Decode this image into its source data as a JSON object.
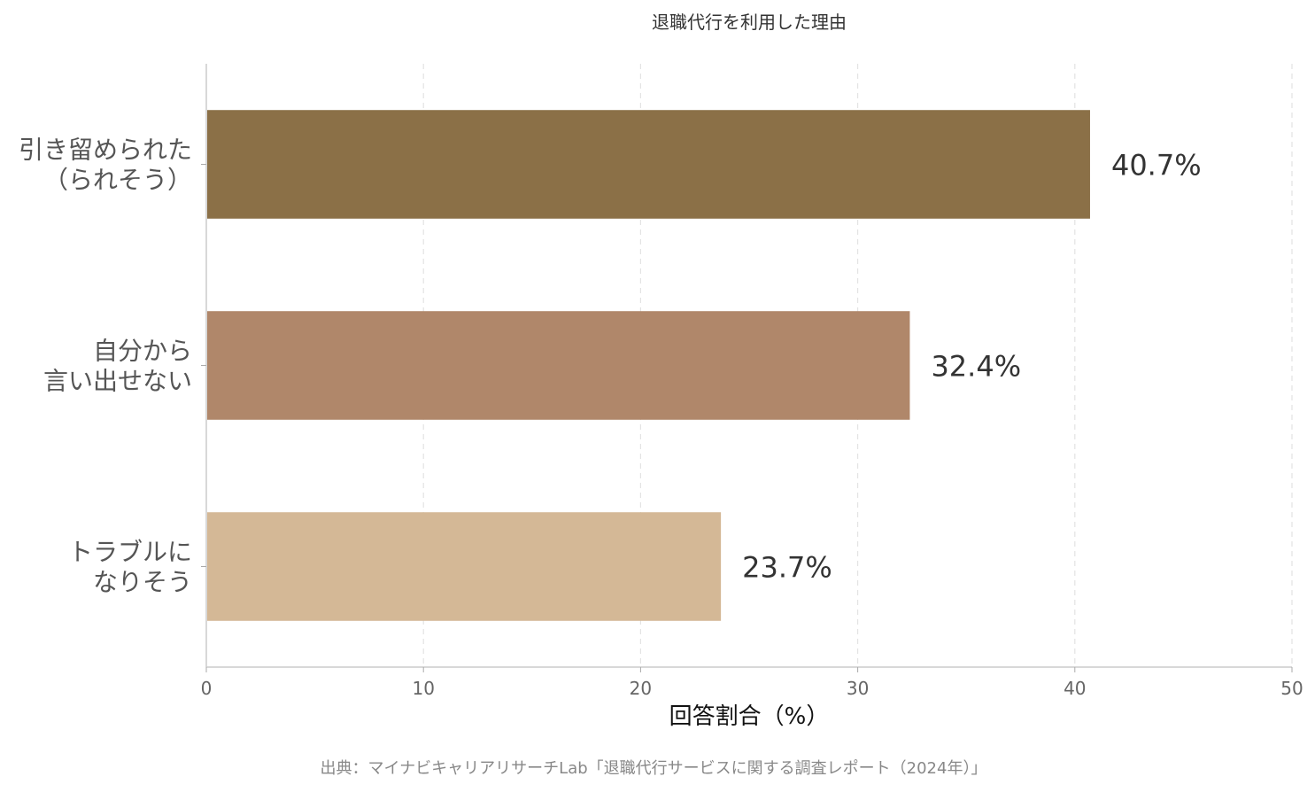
{
  "chart_data": {
    "type": "bar",
    "orientation": "horizontal",
    "title": "退職代行を利用した理由",
    "categories": [
      [
        "引き留められた",
        "（られそう）"
      ],
      [
        "自分から",
        "言い出せない"
      ],
      [
        "トラブルに",
        "なりそう"
      ]
    ],
    "values": [
      40.7,
      32.4,
      23.7
    ],
    "value_labels": [
      "40.7%",
      "32.4%",
      "23.7%"
    ],
    "colors": [
      "#8B7047",
      "#B0876A",
      "#D4B896"
    ],
    "xlabel": "回答割合（%）",
    "ylabel": "",
    "xlim": [
      0,
      50
    ],
    "xticks": [
      0,
      10,
      20,
      30,
      40,
      50
    ],
    "xtick_labels": [
      "0",
      "10",
      "20",
      "30",
      "40",
      "50"
    ],
    "grid": "vertical dashed",
    "source": "出典：マイナビキャリアリサーチLab「退職代行サービスに関する調査レポート（2024年）」"
  }
}
